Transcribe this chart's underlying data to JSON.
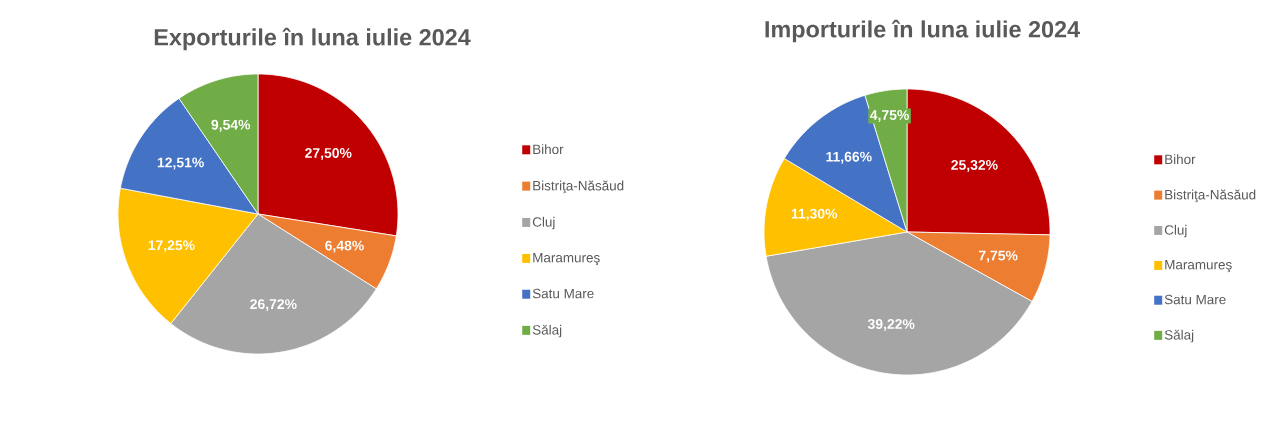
{
  "chart_data": [
    {
      "type": "pie",
      "title": "Exporturile în luna iulie 2024",
      "categories": [
        "Bihor",
        "Bistriţa-Năsăud",
        "Cluj",
        "Maramureş",
        "Satu Mare",
        "Sălaj"
      ],
      "values": [
        27.5,
        6.48,
        26.72,
        17.25,
        12.51,
        9.54
      ],
      "colors": [
        "#c00000",
        "#ed7d31",
        "#a5a5a5",
        "#ffc000",
        "#4472c4",
        "#70ad47"
      ],
      "value_labels": [
        "27,50%",
        "6,48%",
        "26,72%",
        "17,25%",
        "12,51%",
        "9,54%"
      ],
      "legend": "right"
    },
    {
      "type": "pie",
      "title": "Importurile în luna iulie 2024",
      "categories": [
        "Bihor",
        "Bistriţa-Năsăud",
        "Cluj",
        "Maramureş",
        "Satu Mare",
        "Sălaj"
      ],
      "values": [
        25.32,
        7.75,
        39.22,
        11.3,
        11.66,
        4.75
      ],
      "colors": [
        "#c00000",
        "#ed7d31",
        "#a5a5a5",
        "#ffc000",
        "#4472c4",
        "#70ad47"
      ],
      "value_labels": [
        "25,32%",
        "7,75%",
        "39,22%",
        "11,30%",
        "11,66%",
        "4,75%"
      ],
      "legend": "right"
    }
  ]
}
